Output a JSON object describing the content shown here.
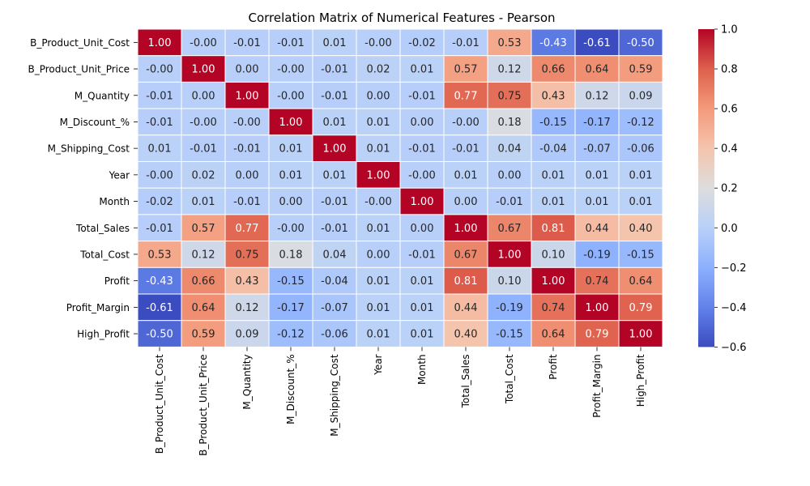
{
  "chart_data": {
    "type": "heatmap",
    "title": "Correlation Matrix of Numerical Features - Pearson",
    "xlabel": "",
    "ylabel": "",
    "rows": [
      "B_Product_Unit_Cost",
      "B_Product_Unit_Price",
      "M_Quantity",
      "M_Discount_%",
      "M_Shipping_Cost",
      "Year",
      "Month",
      "Total_Sales",
      "Total_Cost",
      "Profit",
      "Profit_Margin",
      "High_Profit"
    ],
    "columns": [
      "B_Product_Unit_Cost",
      "B_Product_Unit_Price",
      "M_Quantity",
      "M_Discount_%",
      "M_Shipping_Cost",
      "Year",
      "Month",
      "Total_Sales",
      "Total_Cost",
      "Profit",
      "Profit_Margin",
      "High_Profit"
    ],
    "values": [
      [
        1.0,
        -0.0,
        -0.01,
        -0.01,
        0.01,
        -0.0,
        -0.02,
        -0.01,
        0.53,
        -0.43,
        -0.61,
        -0.5
      ],
      [
        -0.0,
        1.0,
        0.0,
        -0.0,
        -0.01,
        0.02,
        0.01,
        0.57,
        0.12,
        0.66,
        0.64,
        0.59
      ],
      [
        -0.01,
        0.0,
        1.0,
        -0.0,
        -0.01,
        0.0,
        -0.01,
        0.77,
        0.75,
        0.43,
        0.12,
        0.09
      ],
      [
        -0.01,
        -0.0,
        -0.0,
        1.0,
        0.01,
        0.01,
        0.0,
        -0.0,
        0.18,
        -0.15,
        -0.17,
        -0.12
      ],
      [
        0.01,
        -0.01,
        -0.01,
        0.01,
        1.0,
        0.01,
        -0.01,
        -0.01,
        0.04,
        -0.04,
        -0.07,
        -0.06
      ],
      [
        -0.0,
        0.02,
        0.0,
        0.01,
        0.01,
        1.0,
        -0.0,
        0.01,
        0.0,
        0.01,
        0.01,
        0.01
      ],
      [
        -0.02,
        0.01,
        -0.01,
        0.0,
        -0.01,
        -0.0,
        1.0,
        0.0,
        -0.01,
        0.01,
        0.01,
        0.01
      ],
      [
        -0.01,
        0.57,
        0.77,
        -0.0,
        -0.01,
        0.01,
        0.0,
        1.0,
        0.67,
        0.81,
        0.44,
        0.4
      ],
      [
        0.53,
        0.12,
        0.75,
        0.18,
        0.04,
        0.0,
        -0.01,
        0.67,
        1.0,
        0.1,
        -0.19,
        -0.15
      ],
      [
        -0.43,
        0.66,
        0.43,
        -0.15,
        -0.04,
        0.01,
        0.01,
        0.81,
        0.1,
        1.0,
        0.74,
        0.64
      ],
      [
        -0.61,
        0.64,
        0.12,
        -0.17,
        -0.07,
        0.01,
        0.01,
        0.44,
        -0.19,
        0.74,
        1.0,
        0.79
      ],
      [
        -0.5,
        0.59,
        0.09,
        -0.12,
        -0.06,
        0.01,
        0.01,
        0.4,
        -0.15,
        0.64,
        0.79,
        1.0
      ]
    ],
    "colormap": "coolwarm",
    "vmin": -0.6,
    "vmax": 1.0,
    "colorbar_ticks": [
      "−0.6",
      "−0.4",
      "−0.2",
      "0.0",
      "0.2",
      "0.4",
      "0.6",
      "0.8",
      "1.0"
    ],
    "annotate": true,
    "grid": true
  }
}
